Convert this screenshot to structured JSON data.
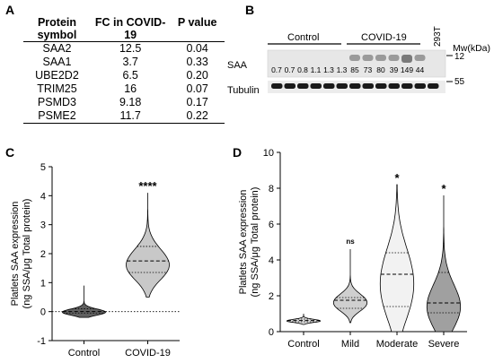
{
  "panels": {
    "A": "A",
    "B": "B",
    "C": "C",
    "D": "D"
  },
  "table": {
    "headers": [
      "Protein symbol",
      "FC in COVID-19",
      "P value"
    ],
    "rows": [
      [
        "SAA2",
        "12.5",
        "0.04"
      ],
      [
        "SAA1",
        "3.7",
        "0.33"
      ],
      [
        "UBE2D2",
        "6.5",
        "0.20"
      ],
      [
        "TRIM25",
        "16",
        "0.07"
      ],
      [
        "PSMD3",
        "9.18",
        "0.17"
      ],
      [
        "PSME2",
        "11.7",
        "0.22"
      ]
    ]
  },
  "blot": {
    "group_control": "Control",
    "group_covid": "COVID-19",
    "cell_line": "293T",
    "mw_label": "Mw(kDa)",
    "saa_label": "SAA",
    "tubulin_label": "Tubulin",
    "mw_saa": "12",
    "mw_tubulin": "55",
    "band_values": [
      "0.7",
      "0.7",
      "0.8",
      "1.1",
      "1.3",
      "1.3",
      "85",
      "73",
      "80",
      "39",
      "149",
      "44"
    ]
  },
  "chart_data": [
    {
      "type": "violin",
      "panel": "C",
      "ylabel": "Platlets SAA expression (ng SSA/μg Total protein)",
      "categories": [
        "Control",
        "COVID-19"
      ],
      "ylim": [
        -1,
        5
      ],
      "yticks": [
        -1,
        0,
        1,
        2,
        3,
        4,
        5
      ],
      "series": [
        {
          "values": {
            "min": -0.2,
            "q1": -0.05,
            "median": 0.0,
            "q3": 0.1,
            "max": 0.9
          },
          "fill": "#606060"
        },
        {
          "values": {
            "min": 0.5,
            "q1": 1.35,
            "median": 1.75,
            "q3": 2.25,
            "max": 4.1
          },
          "fill": "#c8c8c8"
        }
      ],
      "annotations": [
        "",
        "****"
      ],
      "reference_line": 0
    },
    {
      "type": "violin",
      "panel": "D",
      "ylabel": "Platlets SAA expression (ng SSA/μg Total protein)",
      "categories": [
        "Control",
        "Mild",
        "Moderate",
        "Severe"
      ],
      "ylim": [
        0,
        10
      ],
      "yticks": [
        0,
        2,
        4,
        6,
        8,
        10
      ],
      "series": [
        {
          "values": {
            "min": 0.4,
            "q1": 0.55,
            "median": 0.62,
            "q3": 0.7,
            "max": 1.0
          },
          "fill": "#d9d9d9"
        },
        {
          "values": {
            "min": 0.5,
            "q1": 1.3,
            "median": 1.75,
            "q3": 1.9,
            "max": 4.6
          },
          "fill": "#cfcfcf"
        },
        {
          "values": {
            "min": 0.0,
            "q1": 1.4,
            "median": 3.2,
            "q3": 4.4,
            "max": 8.2
          },
          "fill": "#f2f2f2"
        },
        {
          "values": {
            "min": 0.0,
            "q1": 1.05,
            "median": 1.6,
            "q3": 3.3,
            "max": 7.6
          },
          "fill": "#a0a0a0"
        }
      ],
      "annotations": [
        "",
        "ns",
        "*",
        "*"
      ]
    }
  ]
}
